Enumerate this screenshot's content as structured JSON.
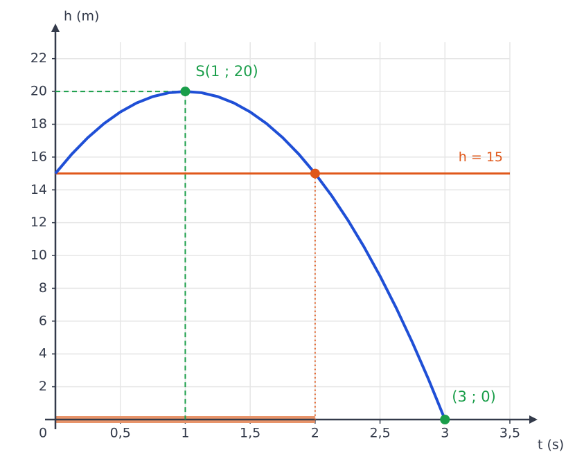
{
  "chart_data": {
    "type": "line",
    "x_label": "t (s)",
    "y_label": "h (m)",
    "xlim": [
      0,
      3.5
    ],
    "ylim": [
      0,
      23
    ],
    "xticks": [
      {
        "value": 0,
        "label": "0"
      },
      {
        "value": 0.5,
        "label": "0,5"
      },
      1,
      {
        "value": 1.5,
        "label": "1,5"
      },
      2,
      {
        "value": 2.5,
        "label": "2,5"
      },
      3,
      {
        "value": 3.5,
        "label": "3,5"
      }
    ],
    "yticks": [
      2,
      4,
      6,
      8,
      10,
      12,
      14,
      16,
      18,
      20,
      22
    ],
    "grid": true,
    "series": [
      {
        "color": "#1f4fd6",
        "x": [
          0,
          0.125,
          0.25,
          0.375,
          0.5,
          0.625,
          0.75,
          0.875,
          1,
          1.125,
          1.25,
          1.375,
          1.5,
          1.625,
          1.75,
          1.875,
          2,
          2.125,
          2.25,
          2.375,
          2.5,
          2.625,
          2.75,
          2.875,
          3
        ],
        "values": [
          15,
          16.171875,
          17.1875,
          18.046875,
          18.75,
          19.296875,
          19.6875,
          19.921875,
          20,
          19.921875,
          19.6875,
          19.296875,
          18.75,
          18.046875,
          17.1875,
          16.171875,
          15,
          13.671875,
          12.1875,
          10.546875,
          8.75,
          6.796875,
          4.6875,
          2.421875,
          0
        ]
      }
    ],
    "hline": {
      "value": 15,
      "label": "h = 15",
      "color": "#e0581b"
    },
    "interval": {
      "from": 0,
      "to": 2,
      "color": "#e8946a"
    },
    "points": [
      {
        "x": 1,
        "y": 20,
        "color": "#1a9e4a",
        "label": "S(1 ; 20)",
        "guide": "dashed-both"
      },
      {
        "x": 2,
        "y": 15,
        "color": "#e0581b",
        "guide": "dotted-vertical"
      },
      {
        "x": 3,
        "y": 0,
        "color": "#1a9e4a",
        "label": "(3 ; 0)"
      }
    ]
  }
}
